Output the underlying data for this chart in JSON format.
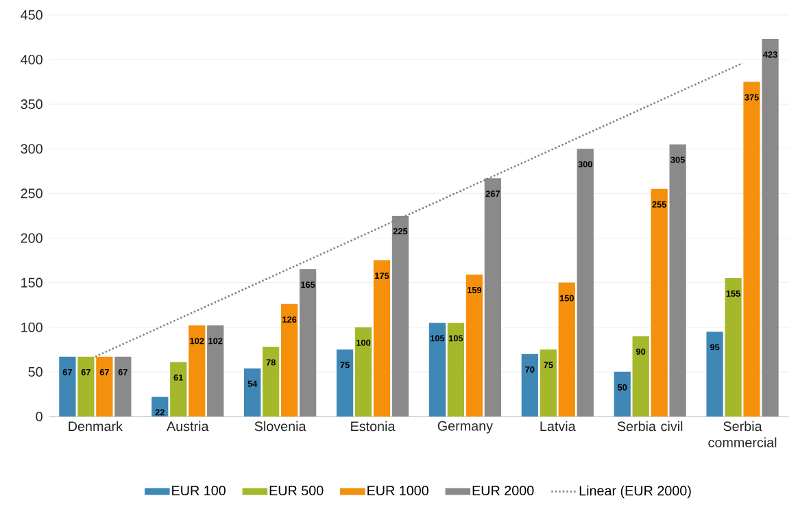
{
  "chart_data": {
    "type": "bar",
    "categories": [
      "Denmark",
      "Austria",
      "Slovenia",
      "Estonia",
      "Germany",
      "Latvia",
      "Serbia civil",
      "Serbia commercial"
    ],
    "series": [
      {
        "name": "EUR 100",
        "color": "#3f87b5",
        "values": [
          67,
          22,
          54,
          75,
          105,
          70,
          50,
          95
        ],
        "value_labels": [
          "67",
          "22",
          "54",
          "75",
          "105",
          "70",
          "50",
          "95"
        ]
      },
      {
        "name": "EUR 500",
        "color": "#a5b82b",
        "values": [
          67,
          61,
          78,
          100,
          105,
          75,
          90,
          155
        ],
        "value_labels": [
          "67",
          "61",
          "78",
          "100",
          "105",
          "75",
          "90",
          "155"
        ]
      },
      {
        "name": "EUR 1000",
        "color": "#f5900c",
        "values": [
          67,
          102,
          126,
          175,
          159,
          150,
          255,
          375
        ],
        "value_labels": [
          "67",
          "102",
          "126",
          "175",
          "159",
          "150",
          "255",
          "375"
        ]
      },
      {
        "name": "EUR 2000",
        "color": "#8a8a8a",
        "values": [
          67,
          102,
          165,
          225,
          267,
          300,
          305,
          423
        ],
        "value_labels": [
          "67",
          "102",
          "165",
          "225",
          "267",
          "300",
          "305",
          "423"
        ]
      },
      {
        "name": "Linear (EUR 2000)",
        "type": "line",
        "color": "#7f7f7f",
        "line_style": "dotted",
        "values": [
          67,
          114,
          161,
          208,
          255,
          302,
          349,
          396
        ]
      }
    ],
    "ylim": [
      0,
      450
    ],
    "yticks": [
      0,
      50,
      100,
      150,
      200,
      250,
      300,
      350,
      400,
      450
    ],
    "grid": "y",
    "legend": "bottom"
  }
}
